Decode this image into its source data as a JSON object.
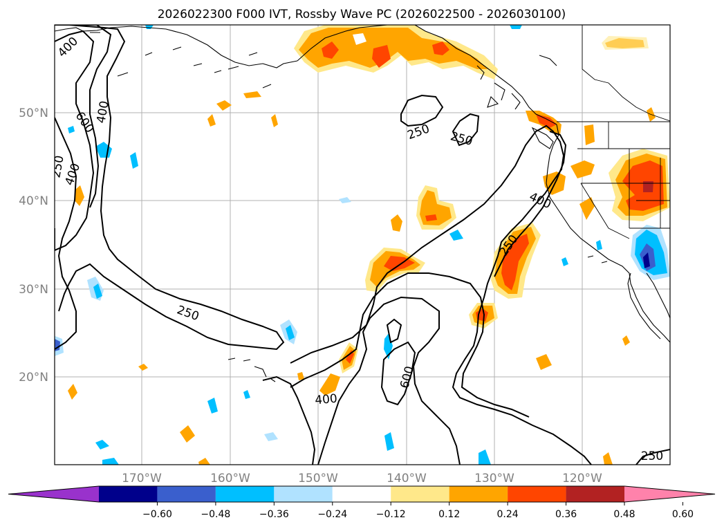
{
  "title": "2026022300 F000 IVT, Rossby Wave PC (2026022500 - 2026030100)",
  "lat_labels": [
    "50°N",
    "40°N",
    "30°N",
    "20°N"
  ],
  "lon_labels": [
    "170°W",
    "160°W",
    "150°W",
    "140°W",
    "130°W",
    "120°W"
  ],
  "contour_labels": [
    "400",
    "600",
    "400",
    "250",
    "400",
    "250",
    "250",
    "250",
    "400",
    "250",
    "250",
    "600",
    "400",
    "250"
  ],
  "colorbar": {
    "tick_labels": [
      "−0.60",
      "−0.48",
      "−0.36",
      "−0.24",
      "−0.12",
      "0.12",
      "0.24",
      "0.36",
      "0.48",
      "0.60"
    ],
    "colors": [
      "#9932cc",
      "#00008b",
      "#3a5fcd",
      "#00bfff",
      "#b0e2ff",
      "#ffffff",
      "#ffe88a",
      "#ffa500",
      "#ff4500",
      "#b22222",
      "#ff82ab"
    ]
  },
  "fill_colors": {
    "light_orange": "#ffe88a",
    "orange": "#ffa500",
    "red_orange": "#ff4500",
    "light_blue": "#b0e2ff",
    "blue": "#00bfff",
    "mid_blue": "#3a5fcd",
    "navy": "#00008b"
  }
}
